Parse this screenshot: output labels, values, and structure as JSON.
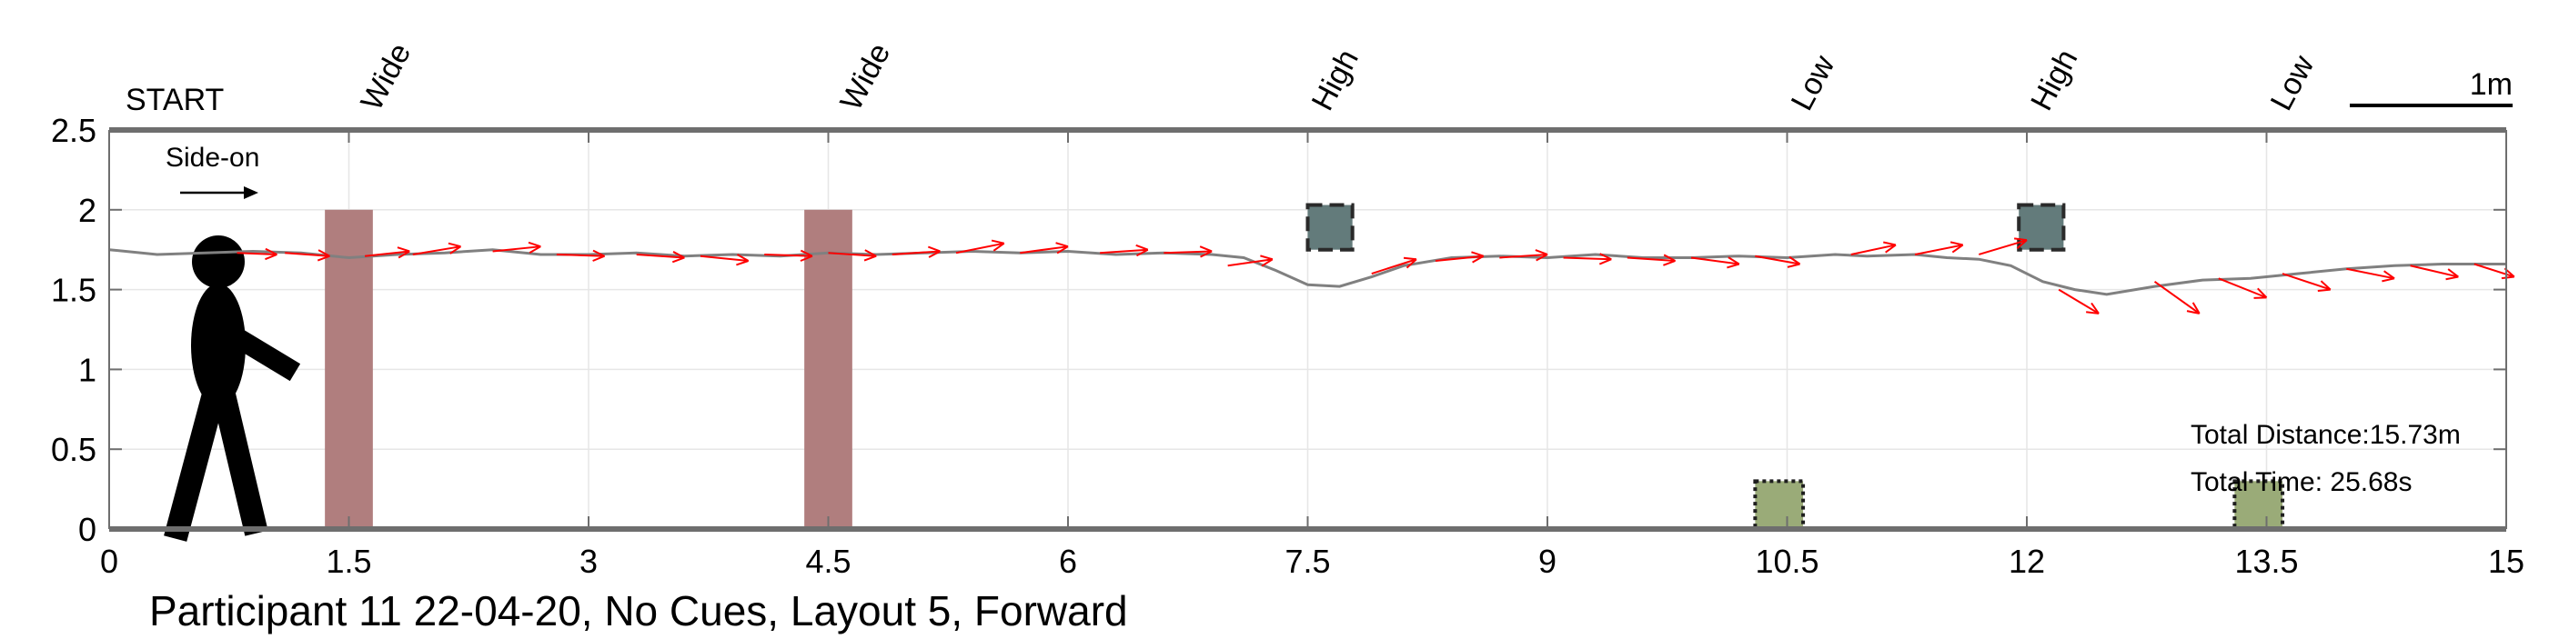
{
  "chart_data": {
    "type": "line",
    "title": "Participant 11 22-04-20, No Cues, Layout 5, Forward",
    "xlim": [
      0,
      15
    ],
    "ylim": [
      0,
      2.5
    ],
    "xticks": [
      0,
      1.5,
      3,
      4.5,
      6,
      7.5,
      9,
      10.5,
      12,
      13.5,
      15
    ],
    "xtick_labels": [
      "0",
      "1.5",
      "3",
      "4.5",
      "6",
      "7.5",
      "9",
      "10.5",
      "12",
      "13.5",
      "15"
    ],
    "yticks": [
      0,
      0.5,
      1,
      1.5,
      2,
      2.5
    ],
    "ytick_labels": [
      "0",
      "0.5",
      "1",
      "1.5",
      "2",
      "2.5"
    ],
    "grid": true,
    "start_label": "START",
    "direction_label": "Side-on",
    "scale_bar": {
      "label": "1m",
      "length": 1
    },
    "obstacle_labels": [
      {
        "x": 1.65,
        "text": "Wide"
      },
      {
        "x": 4.65,
        "text": "Wide"
      },
      {
        "x": 7.6,
        "text": "High"
      },
      {
        "x": 10.6,
        "text": "Low"
      },
      {
        "x": 12.1,
        "text": "High"
      },
      {
        "x": 13.6,
        "text": "Low"
      }
    ],
    "wide_obstacles": [
      {
        "x0": 1.35,
        "x1": 1.65,
        "y0": 0,
        "y1": 2.0,
        "color": "#b07e7e"
      },
      {
        "x0": 4.35,
        "x1": 4.65,
        "y0": 0,
        "y1": 2.0,
        "color": "#b07e7e"
      }
    ],
    "high_obstacles": [
      {
        "x0": 7.5,
        "x1": 7.78,
        "y0": 1.75,
        "y1": 2.03,
        "color": "#637b7b"
      },
      {
        "x0": 11.95,
        "x1": 12.23,
        "y0": 1.75,
        "y1": 2.03,
        "color": "#637b7b"
      }
    ],
    "low_obstacles": [
      {
        "x0": 10.3,
        "x1": 10.6,
        "y0": 0,
        "y1": 0.3,
        "color": "#9aab78"
      },
      {
        "x0": 13.3,
        "x1": 13.6,
        "y0": 0,
        "y1": 0.3,
        "color": "#9aab78"
      }
    ],
    "series": [
      {
        "x": [
          0,
          0.3,
          0.6,
          0.9,
          1.2,
          1.5,
          1.8,
          2.1,
          2.4,
          2.7,
          3.0,
          3.3,
          3.6,
          3.9,
          4.2,
          4.5,
          4.8,
          5.1,
          5.4,
          5.7,
          6.0,
          6.3,
          6.6,
          6.9,
          7.1,
          7.3,
          7.5,
          7.7,
          7.9,
          8.1,
          8.4,
          8.7,
          9.0,
          9.3,
          9.6,
          9.9,
          10.2,
          10.5,
          10.8,
          11.0,
          11.3,
          11.5,
          11.7,
          11.9,
          12.1,
          12.3,
          12.5,
          12.8,
          13.1,
          13.4,
          13.7,
          14.0,
          14.3,
          14.6,
          15.0
        ],
        "y": [
          1.75,
          1.72,
          1.73,
          1.74,
          1.73,
          1.7,
          1.72,
          1.73,
          1.75,
          1.72,
          1.72,
          1.73,
          1.71,
          1.72,
          1.71,
          1.73,
          1.72,
          1.73,
          1.74,
          1.73,
          1.74,
          1.72,
          1.73,
          1.72,
          1.7,
          1.62,
          1.53,
          1.52,
          1.58,
          1.65,
          1.7,
          1.71,
          1.7,
          1.72,
          1.7,
          1.7,
          1.71,
          1.7,
          1.72,
          1.71,
          1.72,
          1.7,
          1.69,
          1.65,
          1.55,
          1.5,
          1.47,
          1.52,
          1.56,
          1.57,
          1.6,
          1.63,
          1.65,
          1.66,
          1.66
        ],
        "color": "#808080"
      }
    ],
    "direction_vectors": [
      {
        "x": 0.8,
        "y": 1.73,
        "dx": 0.25,
        "dy": -0.01
      },
      {
        "x": 1.1,
        "y": 1.73,
        "dx": 0.28,
        "dy": -0.02
      },
      {
        "x": 1.6,
        "y": 1.71,
        "dx": 0.28,
        "dy": 0.03
      },
      {
        "x": 1.9,
        "y": 1.72,
        "dx": 0.3,
        "dy": 0.05
      },
      {
        "x": 2.4,
        "y": 1.74,
        "dx": 0.3,
        "dy": 0.03
      },
      {
        "x": 2.8,
        "y": 1.72,
        "dx": 0.3,
        "dy": -0.01
      },
      {
        "x": 3.3,
        "y": 1.72,
        "dx": 0.3,
        "dy": -0.02
      },
      {
        "x": 3.7,
        "y": 1.71,
        "dx": 0.3,
        "dy": -0.03
      },
      {
        "x": 4.1,
        "y": 1.72,
        "dx": 0.3,
        "dy": -0.01
      },
      {
        "x": 4.5,
        "y": 1.73,
        "dx": 0.3,
        "dy": -0.02
      },
      {
        "x": 4.9,
        "y": 1.72,
        "dx": 0.3,
        "dy": 0.02
      },
      {
        "x": 5.3,
        "y": 1.73,
        "dx": 0.3,
        "dy": 0.06
      },
      {
        "x": 5.7,
        "y": 1.73,
        "dx": 0.3,
        "dy": 0.04
      },
      {
        "x": 6.2,
        "y": 1.73,
        "dx": 0.3,
        "dy": 0.02
      },
      {
        "x": 6.6,
        "y": 1.73,
        "dx": 0.3,
        "dy": 0.01
      },
      {
        "x": 7.0,
        "y": 1.65,
        "dx": 0.28,
        "dy": 0.04
      },
      {
        "x": 7.9,
        "y": 1.6,
        "dx": 0.28,
        "dy": 0.09
      },
      {
        "x": 8.3,
        "y": 1.68,
        "dx": 0.3,
        "dy": 0.03
      },
      {
        "x": 8.7,
        "y": 1.7,
        "dx": 0.3,
        "dy": 0.02
      },
      {
        "x": 9.1,
        "y": 1.7,
        "dx": 0.3,
        "dy": -0.01
      },
      {
        "x": 9.5,
        "y": 1.7,
        "dx": 0.3,
        "dy": -0.02
      },
      {
        "x": 9.9,
        "y": 1.7,
        "dx": 0.3,
        "dy": -0.04
      },
      {
        "x": 10.3,
        "y": 1.71,
        "dx": 0.28,
        "dy": -0.05
      },
      {
        "x": 10.9,
        "y": 1.72,
        "dx": 0.28,
        "dy": 0.06
      },
      {
        "x": 11.3,
        "y": 1.72,
        "dx": 0.3,
        "dy": 0.06
      },
      {
        "x": 11.7,
        "y": 1.72,
        "dx": 0.3,
        "dy": 0.09
      },
      {
        "x": 12.2,
        "y": 1.5,
        "dx": 0.25,
        "dy": -0.15
      },
      {
        "x": 12.8,
        "y": 1.55,
        "dx": 0.28,
        "dy": -0.2
      },
      {
        "x": 13.2,
        "y": 1.57,
        "dx": 0.3,
        "dy": -0.12
      },
      {
        "x": 13.6,
        "y": 1.6,
        "dx": 0.3,
        "dy": -0.1
      },
      {
        "x": 14.0,
        "y": 1.63,
        "dx": 0.3,
        "dy": -0.06
      },
      {
        "x": 14.4,
        "y": 1.65,
        "dx": 0.3,
        "dy": -0.07
      },
      {
        "x": 14.8,
        "y": 1.66,
        "dx": 0.25,
        "dy": -0.08
      }
    ],
    "annotations": [
      {
        "text": "Total Distance:15.73m"
      },
      {
        "text": "Total Time: 25.68s"
      }
    ]
  },
  "colors": {
    "trajectory": "#808080",
    "vector": "#ff0000",
    "axis": "#6e6e6e",
    "grid": "#e6e6e6"
  }
}
